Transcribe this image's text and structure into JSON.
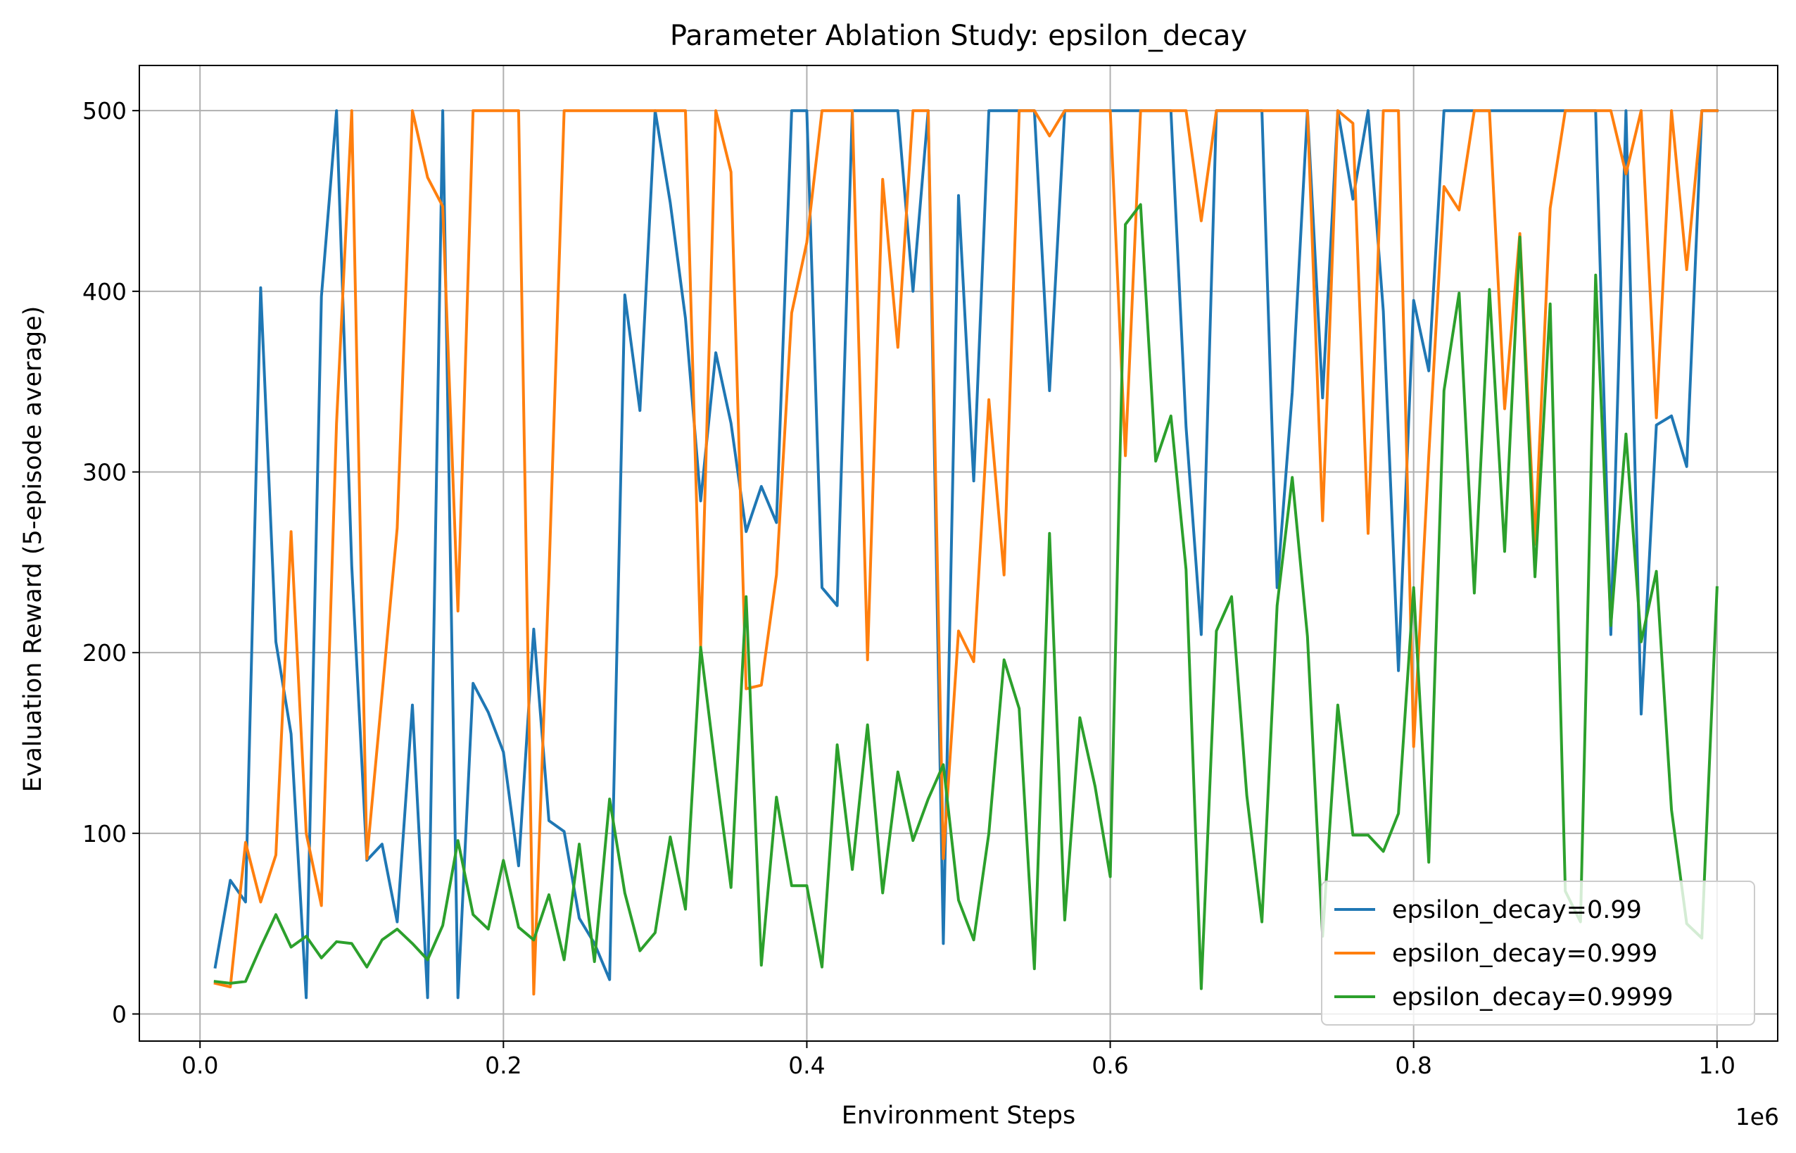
{
  "chart_data": {
    "type": "line",
    "title": "Parameter Ablation Study: epsilon_decay",
    "xlabel": "Environment Steps",
    "ylabel": "Evaluation Reward (5-episode average)",
    "x_multiplier_label": "1e6",
    "xlim": [
      -0.04,
      1.04
    ],
    "ylim": [
      -15,
      525
    ],
    "xticks": [
      0.0,
      0.2,
      0.4,
      0.6,
      0.8,
      1.0
    ],
    "xtick_labels": [
      "0.0",
      "0.2",
      "0.4",
      "0.6",
      "0.8",
      "1.0"
    ],
    "yticks": [
      0,
      100,
      200,
      300,
      400,
      500
    ],
    "ytick_labels": [
      "0",
      "100",
      "200",
      "300",
      "400",
      "500"
    ],
    "grid": true,
    "legend_position": "bottom-right",
    "x": [
      0.01,
      0.02,
      0.03,
      0.04,
      0.05,
      0.06,
      0.07,
      0.08,
      0.09,
      0.1,
      0.11,
      0.12,
      0.13,
      0.14,
      0.15,
      0.16,
      0.17,
      0.18,
      0.19,
      0.2,
      0.21,
      0.22,
      0.23,
      0.24,
      0.25,
      0.26,
      0.27,
      0.28,
      0.29,
      0.3,
      0.31,
      0.32,
      0.33,
      0.34,
      0.35,
      0.36,
      0.37,
      0.38,
      0.39,
      0.4,
      0.41,
      0.42,
      0.43,
      0.44,
      0.45,
      0.46,
      0.47,
      0.48,
      0.49,
      0.5,
      0.51,
      0.52,
      0.53,
      0.54,
      0.55,
      0.56,
      0.57,
      0.58,
      0.59,
      0.6,
      0.61,
      0.62,
      0.63,
      0.64,
      0.65,
      0.66,
      0.67,
      0.68,
      0.69,
      0.7,
      0.71,
      0.72,
      0.73,
      0.74,
      0.75,
      0.76,
      0.77,
      0.78,
      0.79,
      0.8,
      0.81,
      0.82,
      0.83,
      0.84,
      0.85,
      0.86,
      0.87,
      0.88,
      0.89,
      0.9,
      0.91,
      0.92,
      0.93,
      0.94,
      0.95,
      0.96,
      0.97,
      0.98,
      0.99,
      1.0
    ],
    "series": [
      {
        "name": "epsilon_decay=0.99",
        "color": "#1f77b4",
        "values": [
          26,
          74,
          62,
          402,
          206,
          155,
          9,
          397,
          500,
          248,
          85,
          94,
          51,
          171,
          9,
          500,
          9,
          183,
          167,
          145,
          82,
          213,
          107,
          101,
          53,
          39,
          19,
          398,
          334,
          500,
          449,
          385,
          284,
          366,
          327,
          267,
          292,
          272,
          500,
          500,
          236,
          226,
          500,
          500,
          500,
          500,
          400,
          500,
          39,
          453,
          295,
          500,
          500,
          500,
          500,
          345,
          500,
          500,
          500,
          500,
          500,
          500,
          500,
          500,
          325,
          210,
          500,
          500,
          500,
          500,
          236,
          344,
          500,
          341,
          500,
          451,
          500,
          389,
          190,
          395,
          356,
          500,
          500,
          500,
          500,
          500,
          500,
          500,
          500,
          500,
          500,
          500,
          210,
          500,
          166,
          326,
          331,
          303,
          500,
          500
        ]
      },
      {
        "name": "epsilon_decay=0.999",
        "color": "#ff7f0e",
        "values": [
          17,
          15,
          95,
          62,
          88,
          267,
          100,
          60,
          327,
          500,
          86,
          177,
          269,
          500,
          463,
          447,
          223,
          500,
          500,
          500,
          500,
          11,
          243,
          500,
          500,
          500,
          500,
          500,
          500,
          500,
          500,
          500,
          203,
          500,
          466,
          180,
          182,
          243,
          388,
          427,
          500,
          500,
          500,
          196,
          462,
          369,
          500,
          500,
          86,
          212,
          195,
          340,
          243,
          500,
          500,
          486,
          500,
          500,
          500,
          500,
          309,
          500,
          500,
          500,
          500,
          439,
          500,
          500,
          500,
          500,
          500,
          500,
          500,
          273,
          500,
          493,
          266,
          500,
          500,
          148,
          309,
          458,
          445,
          500,
          500,
          335,
          432,
          260,
          446,
          500,
          500,
          500,
          500,
          465,
          500,
          330,
          500,
          412,
          500,
          500
        ]
      },
      {
        "name": "epsilon_decay=0.9999",
        "color": "#2ca02c",
        "values": [
          18,
          17,
          18,
          37,
          55,
          37,
          43,
          31,
          40,
          39,
          26,
          41,
          47,
          39,
          30,
          49,
          96,
          55,
          47,
          85,
          48,
          41,
          66,
          30,
          94,
          29,
          119,
          67,
          35,
          45,
          98,
          58,
          203,
          135,
          70,
          231,
          27,
          120,
          71,
          71,
          26,
          149,
          80,
          160,
          67,
          134,
          96,
          119,
          138,
          63,
          41,
          100,
          196,
          169,
          25,
          266,
          52,
          164,
          126,
          76,
          437,
          448,
          306,
          331,
          246,
          14,
          212,
          231,
          121,
          51,
          226,
          297,
          209,
          43,
          171,
          99,
          99,
          90,
          111,
          236,
          84,
          345,
          399,
          233,
          401,
          256,
          430,
          242,
          393,
          68,
          51,
          409,
          215,
          321,
          206,
          245,
          113,
          50,
          42,
          236
        ]
      }
    ]
  }
}
